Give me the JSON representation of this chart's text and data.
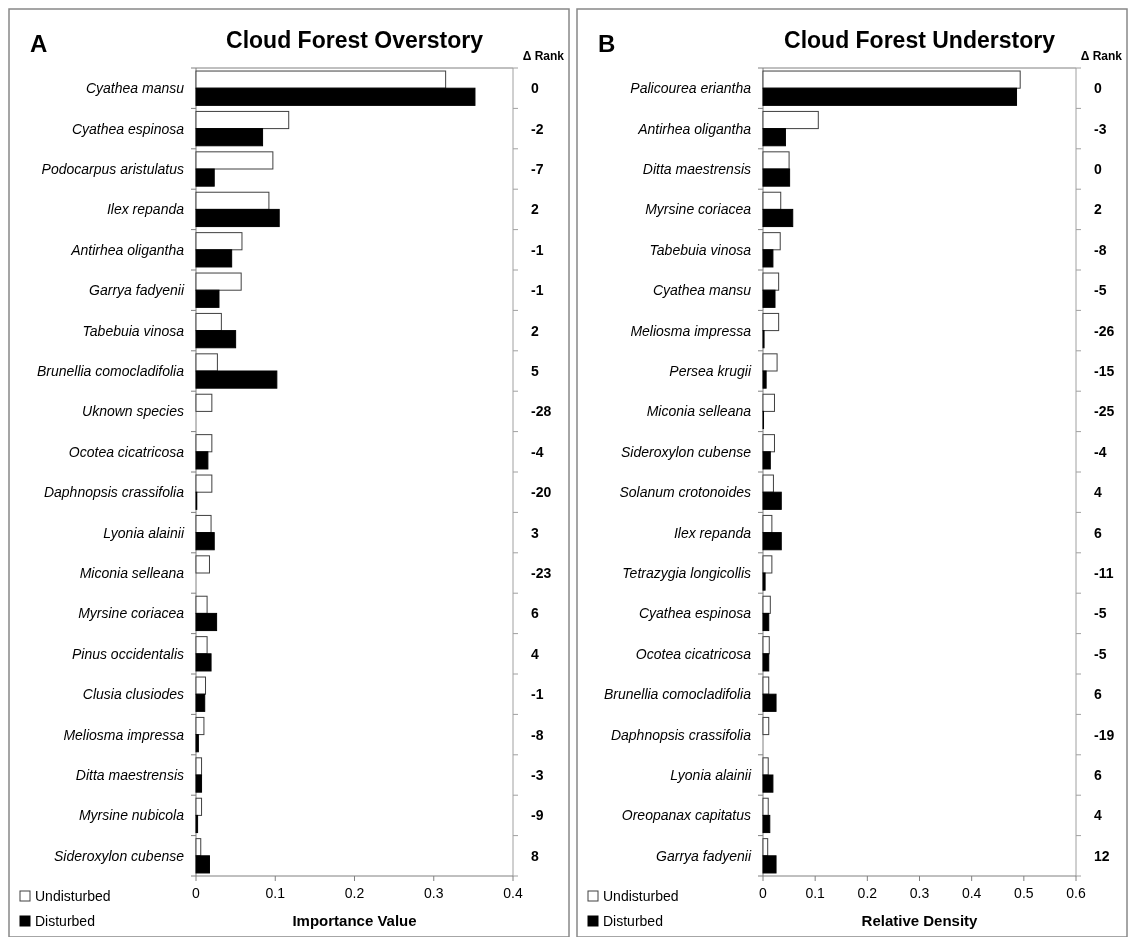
{
  "chart_data": [
    {
      "type": "bar",
      "orientation": "horizontal",
      "title": "Cloud Forest Overstory",
      "xlabel": "Importance Value",
      "legend": "bottom left",
      "xlim": [
        0,
        0.4
      ],
      "xticks": [
        0,
        0.1,
        0.2,
        0.3,
        0.4
      ],
      "categories": [
        "Cyathea mansu",
        "Cyathea espinosa",
        "Podocarpus aristulatus",
        "Ilex repanda",
        "Antirhea oligantha",
        "Garrya fadyenii",
        "Tabebuia vinosa",
        "Brunellia comocladifolia",
        "Uknown species",
        "Ocotea cicatricosa",
        "Daphnopsis crassifolia",
        "Lyonia alainii",
        "Miconia selleana",
        "Myrsine coriacea",
        "Pinus occidentalis",
        "Clusia clusiodes",
        "Meliosma impressa",
        "Ditta maestrensis",
        "Myrsine nubicola",
        "Sideroxylon cubense"
      ],
      "series": [
        {
          "name": "Undisturbed",
          "color": "#ffffff",
          "values": [
            0.315,
            0.117,
            0.097,
            0.092,
            0.058,
            0.057,
            0.032,
            0.027,
            0.02,
            0.02,
            0.02,
            0.019,
            0.017,
            0.014,
            0.014,
            0.012,
            0.01,
            0.007,
            0.007,
            0.006
          ]
        },
        {
          "name": "Disturbed",
          "color": "#000000",
          "values": [
            0.352,
            0.084,
            0.023,
            0.105,
            0.045,
            0.029,
            0.05,
            0.102,
            0,
            0.015,
            0.001,
            0.023,
            0,
            0.026,
            0.019,
            0.011,
            0.003,
            0.007,
            0.002,
            0.017
          ]
        }
      ],
      "annotations": [
        "A",
        "Δ Rank",
        "0",
        "-2",
        "-7",
        "2",
        "-1",
        "-1",
        "2",
        "5",
        "-28",
        "-4",
        "-20",
        "3",
        "-23",
        "6",
        "4",
        "-1",
        "-8",
        "-3",
        "-9",
        "8"
      ]
    },
    {
      "type": "bar",
      "orientation": "horizontal",
      "title": "Cloud Forest Understory",
      "xlabel": "Relative Density",
      "legend": "bottom left",
      "xlim": [
        0,
        0.6
      ],
      "xticks": [
        0,
        0.1,
        0.2,
        0.3,
        0.4,
        0.5,
        0.6
      ],
      "categories": [
        "Palicourea eriantha",
        "Antirhea oligantha",
        "Ditta maestrensis",
        "Myrsine coriacea",
        "Tabebuia vinosa",
        "Cyathea mansu",
        "Meliosma impressa",
        "Persea krugii",
        "Miconia selleana",
        "Sideroxylon cubense",
        "Solanum crotonoides",
        "Ilex repanda",
        "Tetrazygia longicollis",
        "Cyathea espinosa",
        "Ocotea cicatricosa",
        "Brunellia comocladifolia",
        "Daphnopsis crassifolia",
        "Lyonia alainii",
        "Oreopanax capitatus",
        "Garrya fadyenii"
      ],
      "series": [
        {
          "name": "Undisturbed",
          "color": "#ffffff",
          "values": [
            0.493,
            0.106,
            0.05,
            0.034,
            0.033,
            0.03,
            0.03,
            0.027,
            0.022,
            0.022,
            0.02,
            0.017,
            0.017,
            0.014,
            0.012,
            0.011,
            0.011,
            0.01,
            0.01,
            0.009
          ]
        },
        {
          "name": "Disturbed",
          "color": "#000000",
          "values": [
            0.486,
            0.043,
            0.051,
            0.057,
            0.019,
            0.023,
            0.002,
            0.006,
            0.001,
            0.014,
            0.035,
            0.035,
            0.004,
            0.011,
            0.011,
            0.025,
            0,
            0.019,
            0.013,
            0.025
          ]
        }
      ],
      "annotations": [
        "B",
        "Δ Rank",
        "0",
        "-3",
        "0",
        "2",
        "-8",
        "-5",
        "-26",
        "-15",
        "-25",
        "-4",
        "4",
        "6",
        "-11",
        "-5",
        "-5",
        "6",
        "-19",
        "6",
        "4",
        "12"
      ]
    }
  ]
}
